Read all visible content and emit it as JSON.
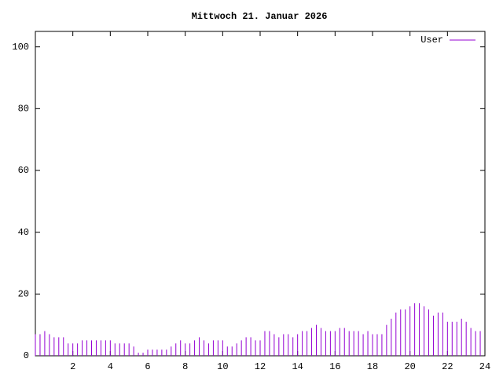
{
  "chart_data": {
    "type": "impulse",
    "title": "Mittwoch 21. Januar 2026",
    "x": [
      0,
      0.25,
      0.5,
      0.75,
      1,
      1.25,
      1.5,
      1.75,
      2,
      2.25,
      2.5,
      2.75,
      3,
      3.25,
      3.5,
      3.75,
      4,
      4.25,
      4.5,
      4.75,
      5,
      5.25,
      5.5,
      5.75,
      6,
      6.25,
      6.5,
      6.75,
      7,
      7.25,
      7.5,
      7.75,
      8,
      8.25,
      8.5,
      8.75,
      9,
      9.25,
      9.5,
      9.75,
      10,
      10.25,
      10.5,
      10.75,
      11,
      11.25,
      11.5,
      11.75,
      12,
      12.25,
      12.5,
      12.75,
      13,
      13.25,
      13.5,
      13.75,
      14,
      14.25,
      14.5,
      14.75,
      15,
      15.25,
      15.5,
      15.75,
      16,
      16.25,
      16.5,
      16.75,
      17,
      17.25,
      17.5,
      17.75,
      18,
      18.25,
      18.5,
      18.75,
      19,
      19.25,
      19.5,
      19.75,
      20,
      20.25,
      20.5,
      20.75,
      21,
      21.25,
      21.5,
      21.75,
      22,
      22.25,
      22.5,
      22.75,
      23,
      23.25,
      23.5,
      23.75
    ],
    "series": [
      {
        "name": "User",
        "color": "#9400d3",
        "values": [
          7,
          7,
          8,
          7,
          6,
          6,
          6,
          4,
          4,
          4,
          5,
          5,
          5,
          5,
          5,
          5,
          5,
          4,
          4,
          4,
          4,
          3,
          1,
          1,
          2,
          2,
          2,
          2,
          2,
          3,
          4,
          5,
          4,
          4,
          5,
          6,
          5,
          4,
          5,
          5,
          5,
          3,
          3,
          4,
          5,
          6,
          6,
          5,
          5,
          8,
          8,
          7,
          6,
          7,
          7,
          6,
          7,
          8,
          8,
          9,
          10,
          9,
          8,
          8,
          8,
          9,
          9,
          8,
          8,
          8,
          7,
          8,
          7,
          7,
          7,
          10,
          12,
          14,
          15,
          15,
          16,
          17,
          17,
          16,
          15,
          13,
          14,
          14,
          11,
          11,
          11,
          12,
          11,
          9,
          8,
          8
        ]
      }
    ],
    "xlim": [
      0,
      24
    ],
    "xticks": [
      2,
      4,
      6,
      8,
      10,
      12,
      14,
      16,
      18,
      20,
      22,
      24
    ],
    "ylim": [
      0,
      105
    ],
    "yticks": [
      0,
      20,
      40,
      60,
      80,
      100
    ],
    "legend": "top-right"
  }
}
